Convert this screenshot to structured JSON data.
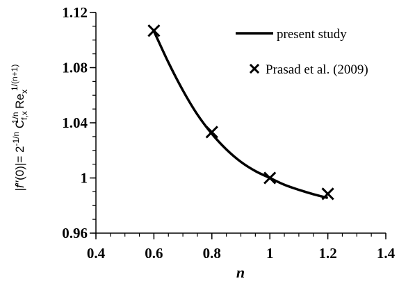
{
  "chart_data": {
    "type": "line",
    "xlabel": "n",
    "ylabel": "|f′′(0)|= 2^(-1/n) C_f,x^(1/n) Re_x^(1/(n+1))",
    "ylabel_parts": {
      "prefix": "|",
      "f": "f",
      "mid": "′′(0)|= 2",
      "exp1": "-1/n",
      "c": " C",
      "sub_f": "f,x",
      "exp2": "1/n",
      "re": " Re",
      "sub_x": "x",
      "exp3": "1/(n+1)"
    },
    "xlim": [
      0.4,
      1.4
    ],
    "ylim": [
      0.96,
      1.12
    ],
    "xticks": [
      0.4,
      0.6,
      0.8,
      1.0,
      1.2,
      1.4
    ],
    "xtick_labels": [
      "0.4",
      "0.6",
      "0.8",
      "1",
      "1.2",
      "1.4"
    ],
    "yticks": [
      0.96,
      1.0,
      1.04,
      1.08,
      1.12
    ],
    "ytick_labels": [
      "0.96",
      "1",
      "1.04",
      "1.08",
      "1.12"
    ],
    "grid": false,
    "legend_position": "top-right",
    "series": [
      {
        "name": "present study",
        "style": "line",
        "color": "#000000",
        "x": [
          0.6,
          0.65,
          0.7,
          0.75,
          0.8,
          0.85,
          0.9,
          0.95,
          1.0,
          1.05,
          1.1,
          1.15,
          1.2
        ],
        "y": [
          1.1065,
          1.0838,
          1.0635,
          1.046,
          1.032,
          1.0207,
          1.0117,
          1.005,
          1.0,
          0.9951,
          0.9914,
          0.9882,
          0.9855
        ]
      },
      {
        "name": "Prasad et al. (2009)",
        "style": "marker-x",
        "color": "#000000",
        "x": [
          0.6,
          0.8,
          1.0,
          1.2
        ],
        "y": [
          1.1068,
          1.0333,
          1.0,
          0.9885
        ]
      }
    ]
  }
}
